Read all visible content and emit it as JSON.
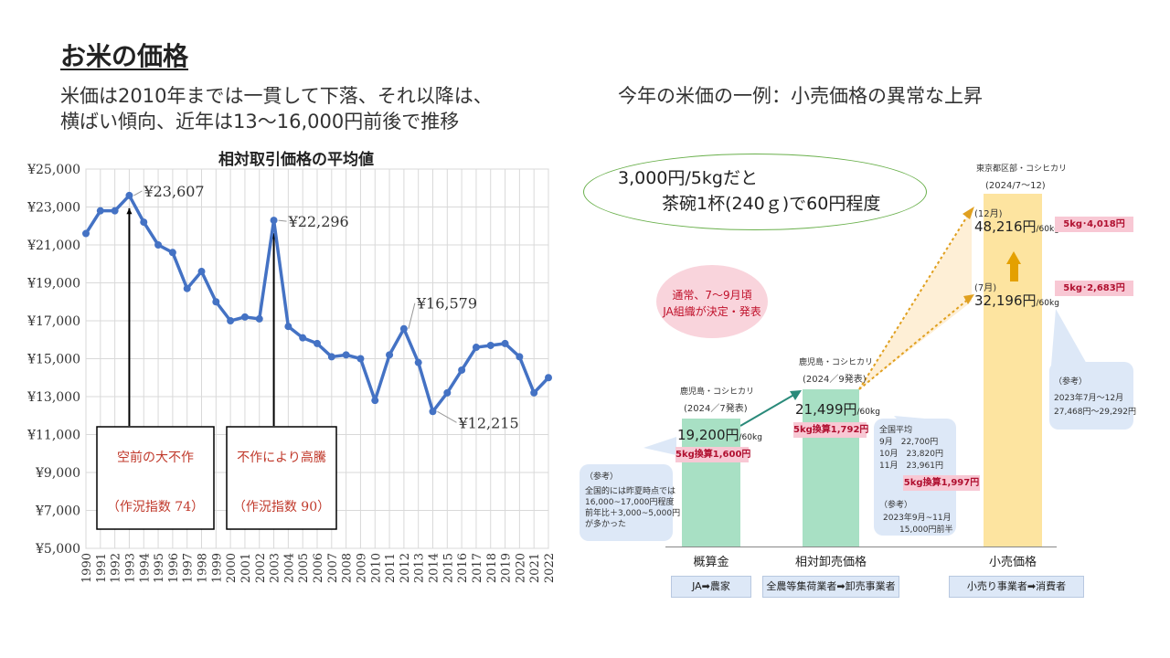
{
  "slide": {
    "title": "お米の価格",
    "subtitle_line1": "米価は2010年までは一貫して下落、それ以降は、",
    "subtitle_line2": "横ばい傾向、近年は13～16,000円前後で推移",
    "right_heading": "今年の米価の一例：小売価格の異常な上昇"
  },
  "left_chart": {
    "box1_line1": "空前の大不作",
    "box1_line2": "（作況指数 74）",
    "box2_line1": "不作により高騰",
    "box2_line2": "（作況指数 90）"
  },
  "chart_data": [
    {
      "type": "line",
      "title": "相対取引価格の平均値",
      "x": [
        1990,
        1991,
        1992,
        1993,
        1994,
        1995,
        1996,
        1997,
        1998,
        1999,
        2000,
        2001,
        2002,
        2003,
        2004,
        2005,
        2006,
        2007,
        2008,
        2009,
        2010,
        2011,
        2012,
        2013,
        2014,
        2015,
        2016,
        2017,
        2018,
        2019,
        2020,
        2021,
        2022
      ],
      "series": [
        {
          "values": [
            21600,
            22800,
            22800,
            23607,
            22200,
            21000,
            20600,
            18700,
            19600,
            18000,
            17000,
            17200,
            17100,
            22296,
            16700,
            16100,
            15800,
            15100,
            15200,
            15000,
            12800,
            15200,
            16579,
            14800,
            12215,
            13200,
            14400,
            15600,
            15700,
            15800,
            15100,
            13200,
            14000
          ],
          "color": "#4472c4"
        }
      ],
      "ylim": [
        5000,
        25000
      ],
      "yticks": [
        5000,
        7000,
        9000,
        11000,
        13000,
        15000,
        17000,
        19000,
        21000,
        23000,
        25000
      ],
      "ytick_labels": [
        "¥5,000",
        "¥7,000",
        "¥9,000",
        "¥11,000",
        "¥13,000",
        "¥15,000",
        "¥17,000",
        "¥19,000",
        "¥21,000",
        "¥23,000",
        "¥25,000"
      ],
      "annotations": [
        {
          "x": 1993,
          "y": 23607,
          "text": "¥23,607"
        },
        {
          "x": 2003,
          "y": 22296,
          "text": "¥22,296"
        },
        {
          "x": 2012,
          "y": 16579,
          "text": "¥16,579"
        },
        {
          "x": 2014,
          "y": 12215,
          "text": "¥12,215"
        }
      ],
      "grid": true
    },
    {
      "type": "bar",
      "categories": [
        "概算金",
        "相対卸売価格",
        "小売価格"
      ],
      "category_subtitles": [
        "JA➡農家",
        "全農等集荷業者➡卸売事業者",
        "小売り事業者➡消費者"
      ],
      "values": [
        19200,
        21499,
        48216
      ],
      "unit": "円/60kg",
      "colors": [
        "#a8e0c4",
        "#a8e0c4",
        "#fde4a0"
      ]
    }
  ],
  "right_chart": {
    "callout_line1": "3,000円/5kgだと",
    "callout_line2": "茶碗1杯(240ｇ)で60円程度",
    "circle_line1": "通常、7～9月頃",
    "circle_line2": "JA組織が決定・発表",
    "bar1_region": "鹿児島・コシヒカリ",
    "bar1_date": "(2024／7発表)",
    "bar1_value": "19,200円",
    "bar1_unit": "/60kg",
    "bar1_pink": "5kg換算1,600円",
    "bar2_region": "鹿児島・コシヒカリ",
    "bar2_date": "(2024／9発表)",
    "bar2_value": "21,499円",
    "bar2_unit": "/60kg",
    "bar2_pink": "5kg換算1,792円",
    "bar3_region": "東京都区部・コシヒカリ",
    "bar3_date": "(2024/7～12)",
    "dec_label": "(12月)",
    "dec_value": "48,216円",
    "dec_unit": "/60kg",
    "dec_pink": "5kg･4,018円",
    "jul_label": "(7月)",
    "jul_value": "32,196円",
    "jul_unit": "/60kg",
    "jul_pink": "5kg･2,683円",
    "ref_left_title": "（参考）",
    "ref_left_1": "全国的には昨夏時点では",
    "ref_left_2": "16,000~17,000円程度",
    "ref_left_3": "前年比＋3,000~5,000円",
    "ref_left_4": "が多かった",
    "ref_mid_title": "全国平均",
    "ref_mid_1": "9月　22,700円",
    "ref_mid_2": "10月　23,820円",
    "ref_mid_3": "11月　23,961円",
    "ref_mid_pink": "5kg換算1,997円",
    "ref_mid_4": "（参考）",
    "ref_mid_5": "2023年9月~11月",
    "ref_mid_6": "15,000円前半",
    "ref_right_title": "（参考）",
    "ref_right_1": "2023年7月～12月",
    "ref_right_2": "27,468円～29,292円"
  }
}
